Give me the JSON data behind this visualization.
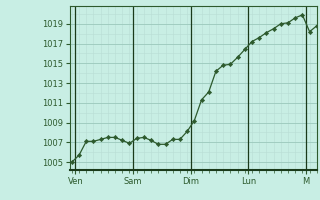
{
  "background_color": "#c8eee4",
  "grid_color_major": "#a0ccc0",
  "grid_color_minor": "#b8ddd5",
  "line_color": "#2d5a2d",
  "marker_color": "#2d5a2d",
  "tick_label_color": "#2d5a2d",
  "spine_color": "#2d5a2d",
  "bottom_spine_color": "#1a3a1a",
  "ylabel_values": [
    1005,
    1007,
    1009,
    1011,
    1013,
    1015,
    1017,
    1019
  ],
  "xlabels": [
    "Ven",
    "Sam",
    "Dim",
    "Lun",
    "M"
  ],
  "xlabels_pos": [
    0.5,
    8.5,
    16.5,
    24.5,
    32.5
  ],
  "day_vlines": [
    0.5,
    8.5,
    16.5,
    24.5,
    32.5
  ],
  "ylim": [
    1004.2,
    1020.8
  ],
  "xlim": [
    -0.2,
    34.0
  ],
  "y_values": [
    1005.0,
    1005.7,
    1007.1,
    1007.1,
    1007.3,
    1007.5,
    1007.5,
    1007.2,
    1006.9,
    1007.4,
    1007.5,
    1007.2,
    1006.8,
    1006.8,
    1007.3,
    1007.3,
    1008.1,
    1009.2,
    1011.3,
    1012.1,
    1014.2,
    1014.8,
    1014.9,
    1015.6,
    1016.4,
    1017.2,
    1017.6,
    1018.1,
    1018.5,
    1019.0,
    1019.1,
    1019.6,
    1019.9,
    1018.2,
    1018.8
  ]
}
